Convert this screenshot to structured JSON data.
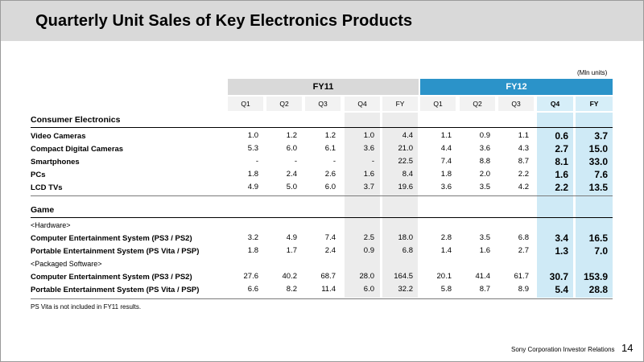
{
  "title": "Quarterly Unit Sales of Key Electronics Products",
  "units": "(Mln units)",
  "header": {
    "fy11": "FY11",
    "fy12": "FY12",
    "fy11_cols": [
      "Q1",
      "Q2",
      "Q3",
      "Q4",
      "FY"
    ],
    "fy12_cols": [
      "Q1",
      "Q2",
      "Q3",
      "Q4",
      "FY"
    ]
  },
  "sections": {
    "consumer": "Consumer Electronics",
    "game": "Game",
    "hardware": "<Hardware>",
    "software": "<Packaged Software>"
  },
  "rows": [
    {
      "label": "Video Cameras",
      "values": [
        "1.0",
        "1.2",
        "1.2",
        "1.0",
        "4.4",
        "1.1",
        "0.9",
        "1.1",
        "0.6",
        "3.7"
      ]
    },
    {
      "label": "Compact Digital Cameras",
      "values": [
        "5.3",
        "6.0",
        "6.1",
        "3.6",
        "21.0",
        "4.4",
        "3.6",
        "4.3",
        "2.7",
        "15.0"
      ]
    },
    {
      "label": "Smartphones",
      "values": [
        "-",
        "-",
        "-",
        "-",
        "22.5",
        "7.4",
        "8.8",
        "8.7",
        "8.1",
        "33.0"
      ]
    },
    {
      "label": "PCs",
      "values": [
        "1.8",
        "2.4",
        "2.6",
        "1.6",
        "8.4",
        "1.8",
        "2.0",
        "2.2",
        "1.6",
        "7.6"
      ]
    },
    {
      "label": "LCD TVs",
      "values": [
        "4.9",
        "5.0",
        "6.0",
        "3.7",
        "19.6",
        "3.6",
        "3.5",
        "4.2",
        "2.2",
        "13.5"
      ]
    },
    {
      "label": "Computer Entertainment System (PS3 / PS2)",
      "values": [
        "3.2",
        "4.9",
        "7.4",
        "2.5",
        "18.0",
        "2.8",
        "3.5",
        "6.8",
        "3.4",
        "16.5"
      ]
    },
    {
      "label": "Portable Entertainment System (PS Vita / PSP)",
      "values": [
        "1.8",
        "1.7",
        "2.4",
        "0.9",
        "6.8",
        "1.4",
        "1.6",
        "2.7",
        "1.3",
        "7.0"
      ]
    },
    {
      "label": "Computer Entertainment System (PS3 / PS2)",
      "values": [
        "27.6",
        "40.2",
        "68.7",
        "28.0",
        "164.5",
        "20.1",
        "41.4",
        "61.7",
        "30.7",
        "153.9"
      ]
    },
    {
      "label": "Portable Entertainment System (PS Vita / PSP)",
      "values": [
        "6.6",
        "8.2",
        "11.4",
        "6.0",
        "32.2",
        "5.8",
        "8.7",
        "8.9",
        "5.4",
        "28.8"
      ]
    }
  ],
  "footnote": "PS Vita is not included in FY11 results.",
  "footer": "Sony Corporation  Investor Relations",
  "page_number": "14"
}
